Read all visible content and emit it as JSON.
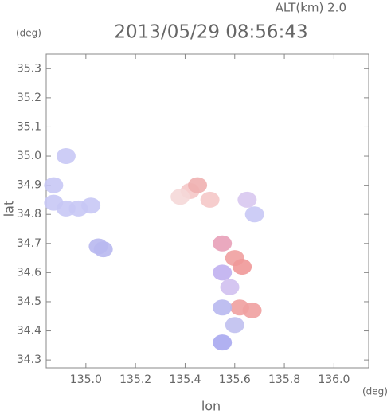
{
  "chart_data": {
    "type": "scatter",
    "title": "2013/05/29 08:56:43",
    "subtitle": "ALT(km) 2.0",
    "x_label": "lon",
    "x_unit": "(deg)",
    "y_label": "lat",
    "y_unit": "(deg)",
    "xlim": [
      134.84,
      136.14
    ],
    "ylim": [
      34.273,
      35.35
    ],
    "xticks": [
      {
        "value": 135.0,
        "label": "135.0"
      },
      135.2,
      135.4,
      135.6,
      135.8,
      {
        "value": 136.0,
        "label": "136.0"
      }
    ],
    "yticks": [
      34.3,
      34.4,
      34.5,
      34.6,
      34.7,
      34.8,
      34.9,
      {
        "value": 35.0,
        "label": "35.0"
      },
      35.1,
      35.2,
      35.3
    ],
    "x": [
      134.87,
      134.87,
      134.92,
      134.97,
      135.02,
      134.92,
      135.07,
      135.05,
      135.42,
      135.45,
      135.38,
      135.55,
      135.6,
      135.55,
      135.63,
      135.58,
      135.62,
      135.55,
      135.67,
      135.6,
      135.55,
      135.68,
      135.65,
      135.5
    ],
    "y": [
      34.9,
      34.84,
      34.82,
      34.82,
      34.83,
      35.0,
      34.68,
      34.69,
      34.88,
      34.9,
      34.86,
      34.7,
      34.65,
      34.6,
      34.62,
      34.55,
      34.48,
      34.48,
      34.47,
      34.42,
      34.36,
      34.8,
      34.85,
      34.85
    ],
    "colors": [
      "#c8c8f5",
      "#c8c8f5",
      "#c8c8f5",
      "#c8c8f5",
      "#c8c8f5",
      "#c8c8f5",
      "#b8b8f0",
      "#b8b8f0",
      "#f5c8c8",
      "#f0b0b0",
      "#f5d8d8",
      "#e8a0b8",
      "#f0a0a0",
      "#c0b0f0",
      "#f09898",
      "#d0c0f0",
      "#f0a0a0",
      "#b8b8f0",
      "#f0a0a0",
      "#c0c0f0",
      "#a8a8f0",
      "#c8c8f5",
      "#d8c8f0",
      "#f5c8c8"
    ]
  }
}
